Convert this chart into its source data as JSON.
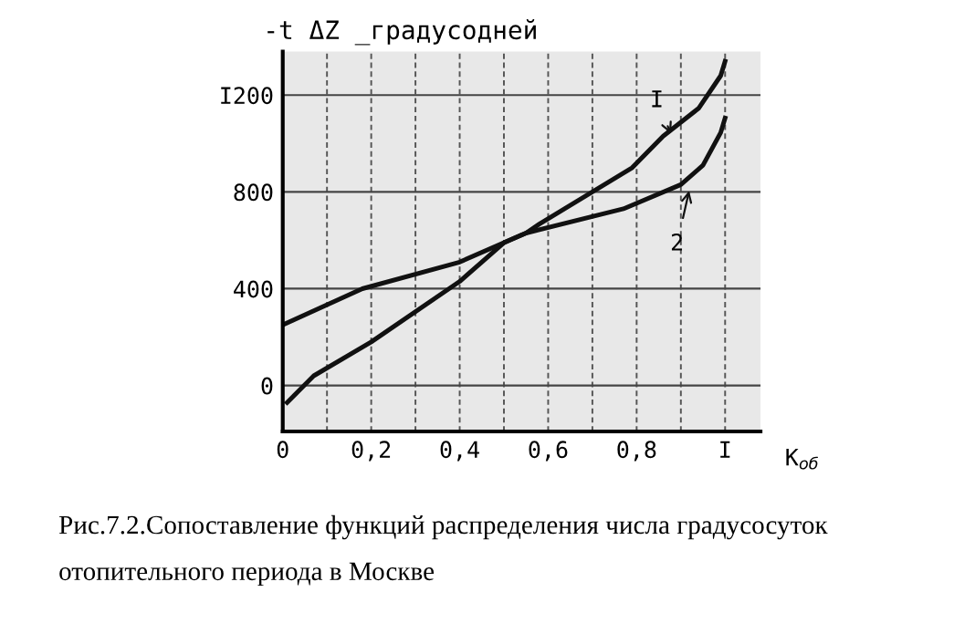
{
  "chart_data": {
    "type": "line",
    "ylabel": "-t ΔZ _градусодней",
    "xlabel": "K$_{об}$",
    "xlim": [
      0,
      1.08
    ],
    "ylim": [
      -190,
      1380
    ],
    "xticks": [
      0,
      {
        "value": 0.1,
        "label": null
      },
      {
        "value": 0.2,
        "label": "0,2"
      },
      {
        "value": 0.3,
        "label": null
      },
      {
        "value": 0.4,
        "label": "0,4"
      },
      {
        "value": 0.5,
        "label": null
      },
      {
        "value": 0.6,
        "label": "0,6"
      },
      {
        "value": 0.7,
        "label": null
      },
      {
        "value": 0.8,
        "label": "0,8"
      },
      {
        "value": 0.9,
        "label": null
      },
      {
        "value": 1,
        "label": "I"
      }
    ],
    "yticks": [
      0,
      400,
      800,
      {
        "value": 1200,
        "label": "I200"
      }
    ],
    "grid": true,
    "marker": "none",
    "line_style": "solid",
    "series": [
      {
        "color": "#111111",
        "x": [
          0.01,
          0.07,
          0.2,
          0.4,
          0.5,
          0.55,
          0.58,
          0.79,
          0.86,
          0.94,
          0.99,
          1.0
        ],
        "values": [
          -70,
          40,
          180,
          430,
          590,
          630,
          667,
          900,
          1030,
          1145,
          1280,
          1340
        ]
      },
      {
        "color": "#111111",
        "x": [
          0.0,
          0.18,
          0.4,
          0.55,
          0.77,
          0.9,
          0.95,
          0.99,
          1.0
        ],
        "values": [
          250,
          400,
          510,
          630,
          730,
          830,
          910,
          1045,
          1105
        ]
      }
    ],
    "annotations": [
      {
        "text": "I",
        "x": 0.88,
        "y": 1030
      },
      {
        "text": "2",
        "x": 0.92,
        "y": 815
      },
      "Рис.7.2.Сопоставление функций распределения числа градусосуток отопительного периода в Москве"
    ]
  }
}
